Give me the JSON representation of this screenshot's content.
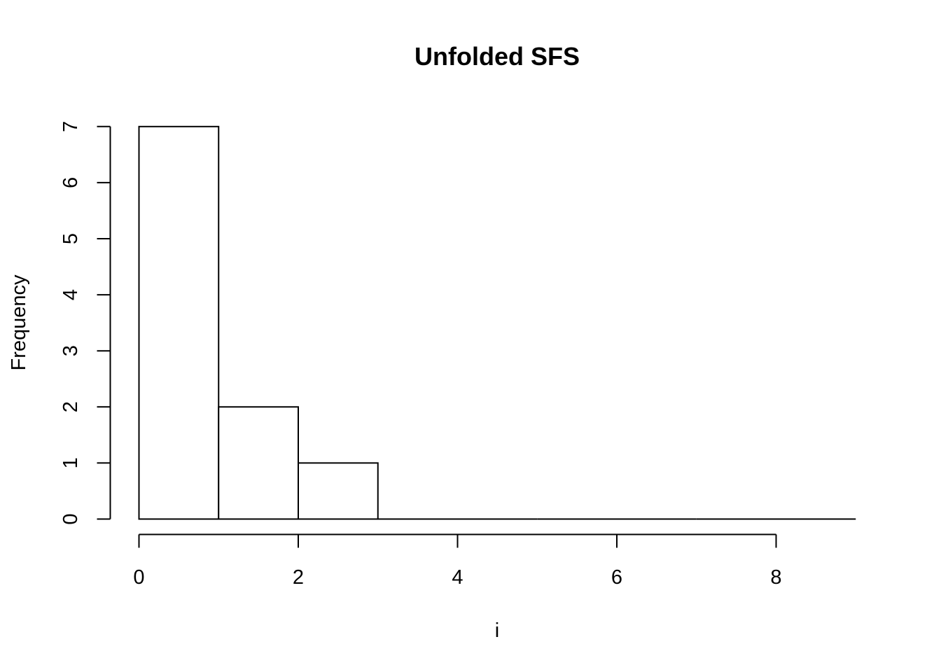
{
  "chart_data": {
    "type": "bar",
    "title": "Unfolded SFS",
    "xlabel": "i",
    "ylabel": "Frequency",
    "bins": [
      [
        0,
        1
      ],
      [
        1,
        2
      ],
      [
        2,
        3
      ],
      [
        3,
        4
      ],
      [
        4,
        5
      ],
      [
        5,
        6
      ],
      [
        6,
        7
      ],
      [
        7,
        8
      ],
      [
        8,
        9
      ]
    ],
    "values": [
      7,
      2,
      1,
      0,
      0,
      0,
      0,
      0,
      0
    ],
    "xlim": [
      0,
      9
    ],
    "ylim": [
      0,
      7
    ],
    "xticks": [
      "0",
      "2",
      "4",
      "6",
      "8"
    ],
    "yticks": [
      "0",
      "1",
      "2",
      "3",
      "4",
      "5",
      "6",
      "7"
    ],
    "grid": false
  }
}
